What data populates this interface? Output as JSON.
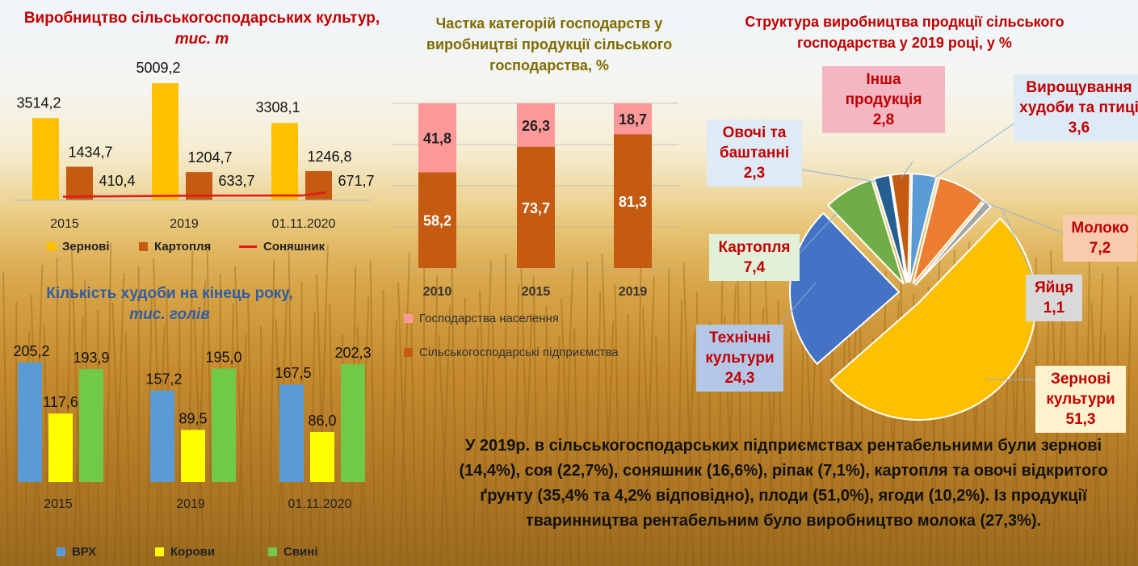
{
  "colors": {
    "title_red": "#c00000",
    "title_olive": "#7f6b00",
    "title_blue": "#2e5ea8",
    "grain": "#ffc000",
    "potato": "#c55a11",
    "sunflower": "#e31a1c",
    "household": "#ff9999",
    "enterprise": "#c55a11",
    "vrh": "#5b9bd5",
    "cows": "#ffff00",
    "pigs": "#70c947"
  },
  "chart_data": [
    {
      "type": "bar",
      "id": "crops",
      "title": "Виробництво сільськогосподарських культур,",
      "title_unit": "тис. т",
      "categories": [
        "2015",
        "2019",
        "01.11.2020"
      ],
      "series": [
        {
          "name": "Зернові",
          "values": [
            3514.2,
            5009.2,
            3308.1
          ]
        },
        {
          "name": "Картопля",
          "values": [
            1434.7,
            1204.7,
            1246.8
          ]
        },
        {
          "name": "Соняшник",
          "type": "line",
          "values": [
            410.4,
            633.7,
            671.7
          ]
        }
      ],
      "value_labels": {
        "Зернові": [
          "3514,2",
          "5009,2",
          "3308,1"
        ],
        "Картопля": [
          "1434,7",
          "1204,7",
          "1246,8"
        ],
        "Соняшник": [
          "410,4",
          "633,7",
          "671,7"
        ]
      },
      "ylim": [
        0,
        5500
      ],
      "legend": "bottom",
      "grid": false
    },
    {
      "type": "bar",
      "id": "shares",
      "stacked": true,
      "title": "Частка категорій господарств у виробництві продукції сільського господарства, %",
      "categories": [
        "2010",
        "2015",
        "2019"
      ],
      "series": [
        {
          "name": "Сільськогосподарські підприємства",
          "values": [
            58.2,
            73.7,
            81.3
          ]
        },
        {
          "name": "Господарства населення",
          "values": [
            41.8,
            26.3,
            18.7
          ]
        }
      ],
      "value_labels": {
        "Сільськогосподарські підприємства": [
          "58,2",
          "73,7",
          "81,3"
        ],
        "Господарства населення": [
          "41,8",
          "26,3",
          "18,7"
        ]
      },
      "ylim": [
        0,
        100
      ],
      "legend": "bottom",
      "grid": true
    },
    {
      "type": "bar",
      "id": "livestock",
      "title": "Кількість худоби на кінець року,",
      "title_unit": "тис. голів",
      "categories": [
        "2015",
        "2019",
        "01.11.2020"
      ],
      "series": [
        {
          "name": "ВРХ",
          "values": [
            205.2,
            157.2,
            167.5
          ]
        },
        {
          "name": "Корови",
          "values": [
            117.6,
            89.5,
            86.0
          ]
        },
        {
          "name": "Свині",
          "values": [
            193.9,
            195.0,
            202.3
          ]
        }
      ],
      "value_labels": {
        "ВРХ": [
          "205,2",
          "157,2",
          "167,5"
        ],
        "Корови": [
          "117,6",
          "89,5",
          "86,0"
        ],
        "Свині": [
          "193,9",
          "195,0",
          "202,3"
        ]
      },
      "ylim": [
        0,
        210
      ],
      "legend": "bottom",
      "grid": false
    },
    {
      "type": "pie",
      "id": "structure",
      "title": "Структура виробництва продкції сільського господарства у 2019 році, у %",
      "slices": [
        {
          "name": "Вирощування худоби та птиці",
          "value": 3.6,
          "label": "3,6",
          "color": "#5b9bd5",
          "label_bg": "#deebf7"
        },
        {
          "name": "Молоко",
          "value": 7.2,
          "label": "7,2",
          "color": "#ed7d31",
          "label_bg": "#f8cbad"
        },
        {
          "name": "Яйця",
          "value": 1.1,
          "label": "1,1",
          "color": "#a5a5a5",
          "label_bg": "#d9d9d9"
        },
        {
          "name": "Зернові культури",
          "value": 51.3,
          "label": "51,3",
          "color": "#ffc000",
          "label_bg": "#fff2cc"
        },
        {
          "name": "Технічні культури",
          "value": 24.3,
          "label": "24,3",
          "color": "#4472c4",
          "label_bg": "#b4c7e7"
        },
        {
          "name": "Картопля",
          "value": 7.4,
          "label": "7,4",
          "color": "#70ad47",
          "label_bg": "#e2f0d9"
        },
        {
          "name": "Овочі та баштанні",
          "value": 2.3,
          "label": "2,3",
          "color": "#255e91",
          "label_bg": "#deebf7"
        },
        {
          "name": "Інша продукція",
          "value": 2.8,
          "label": "2,8",
          "color": "#c55a11",
          "label_bg": "#f4b6c2"
        }
      ]
    }
  ],
  "summary": "У 2019р. в сільськогосподарських підприємствах рентабельними були зернові (14,4%), соя (22,7%), соняшник (16,6%), ріпак (7,1%), картопля та овочі відкритого ґрунту (35,4% та 4,2% відповідно), плоди (51,0%), ягоди (10,2%). Із продукції тваринництва рентабельним було виробництво молока (27,3%)."
}
